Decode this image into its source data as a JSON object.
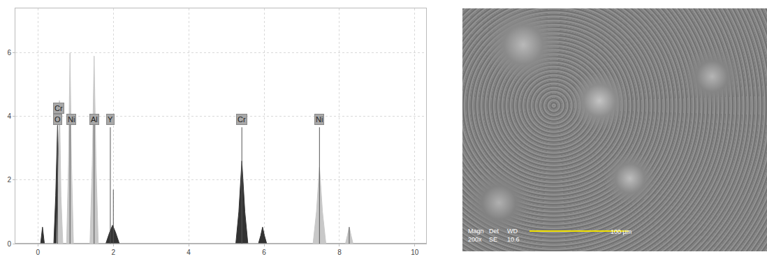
{
  "chart_data": {
    "type": "area",
    "xlim": [
      -0.6,
      10.3
    ],
    "xticks": [
      0,
      2,
      4,
      6,
      8,
      10
    ],
    "ylim": [
      0,
      7.4
    ],
    "yticks": [
      0,
      2,
      4,
      6
    ],
    "grid": true,
    "series": [
      {
        "color": "#333333",
        "x": [
          -0.6,
          0.07,
          0.12,
          0.17,
          0.42,
          0.47,
          0.52,
          0.57,
          0.62,
          1.8,
          1.9,
          1.98,
          2.06,
          2.16,
          5.25,
          5.33,
          5.41,
          5.49,
          5.57,
          5.85,
          5.91,
          5.96,
          6.01,
          6.07,
          10.3
        ],
        "values": [
          0,
          0,
          0.52,
          0,
          0,
          1.5,
          3.7,
          1.5,
          0,
          0,
          0.35,
          0.58,
          0.35,
          0,
          0,
          1.0,
          2.6,
          1.0,
          0,
          0,
          0.25,
          0.52,
          0.25,
          0,
          0
        ]
      },
      {
        "color": "#c8c8c8",
        "x": [
          -0.6,
          0.5,
          0.54,
          0.57,
          0.61,
          0.66,
          0.76,
          0.81,
          0.85,
          0.89,
          0.94,
          1.38,
          1.44,
          1.49,
          1.54,
          1.6,
          7.3,
          7.39,
          7.47,
          7.55,
          7.64,
          8.16,
          8.21,
          8.26,
          8.31,
          8.36,
          10.3
        ],
        "values": [
          0,
          0,
          2.0,
          4.5,
          1.5,
          0,
          0,
          2.5,
          6.0,
          2.5,
          0,
          0,
          2.5,
          5.9,
          2.5,
          0,
          0,
          1.0,
          2.4,
          1.0,
          0,
          0,
          0.25,
          0.52,
          0.25,
          0,
          0
        ]
      }
    ],
    "marker_lines": {
      "color": "#555555",
      "x": [
        0.52,
        0.85,
        1.49,
        1.92,
        2.0,
        5.41,
        7.47,
        8.26
      ],
      "values": [
        3.9,
        3.9,
        3.9,
        3.66,
        1.7,
        3.66,
        3.66,
        0.52
      ]
    },
    "annotations": [
      {
        "text": "Cr",
        "x": 0.55,
        "y": 4.25
      },
      {
        "text": "O",
        "x": 0.52,
        "y": 3.9
      },
      {
        "text": "Ni",
        "x": 0.88,
        "y": 3.9
      },
      {
        "text": "Al",
        "x": 1.49,
        "y": 3.9
      },
      {
        "text": "Y",
        "x": 1.92,
        "y": 3.9
      },
      {
        "text": "Cr",
        "x": 5.41,
        "y": 3.9
      },
      {
        "text": "Ni",
        "x": 7.47,
        "y": 3.9
      }
    ]
  },
  "micrograph": {
    "labels": [
      {
        "header": "Magn",
        "value": "200x"
      },
      {
        "header": "Det",
        "value": "SE"
      },
      {
        "header": "WD",
        "value": "10.6"
      }
    ],
    "scale_bar": "100 µm"
  }
}
